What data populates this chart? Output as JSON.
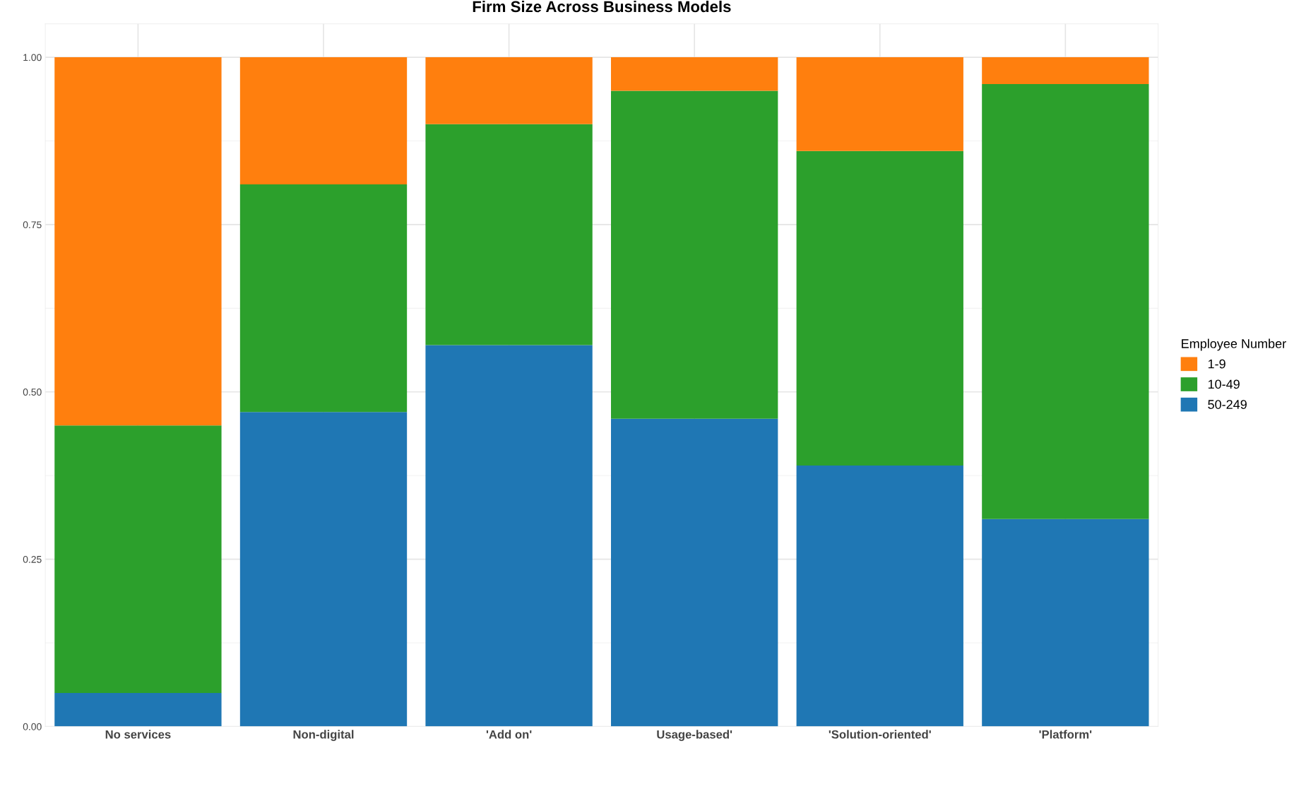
{
  "chart_data": {
    "type": "bar",
    "title": "Firm Size Across Business Models",
    "stacked": true,
    "categories": [
      "No services",
      "Non-digital",
      "'Add on'",
      "Usage-based'",
      "'Solution-oriented'",
      "'Platform'"
    ],
    "series": [
      {
        "name": "50-249",
        "color": "#1f77b4",
        "values": [
          0.05,
          0.47,
          0.57,
          0.46,
          0.39,
          0.31
        ]
      },
      {
        "name": "10-49",
        "color": "#2ca02c",
        "values": [
          0.4,
          0.34,
          0.33,
          0.49,
          0.47,
          0.65
        ]
      },
      {
        "name": "1-9",
        "color": "#ff7f0e",
        "values": [
          0.55,
          0.19,
          0.1,
          0.05,
          0.14,
          0.04
        ]
      }
    ],
    "legend_title": "Employee Number",
    "legend": "right",
    "ylim": [
      0,
      1.05
    ],
    "yticks": [
      {
        "value": 0,
        "label": "0.00"
      },
      {
        "value": 0.25,
        "label": "0.25"
      },
      {
        "value": 0.5,
        "label": "0.50"
      },
      {
        "value": 0.75,
        "label": "0.75"
      },
      {
        "value": 1,
        "label": "1.00"
      }
    ],
    "grid": true
  }
}
